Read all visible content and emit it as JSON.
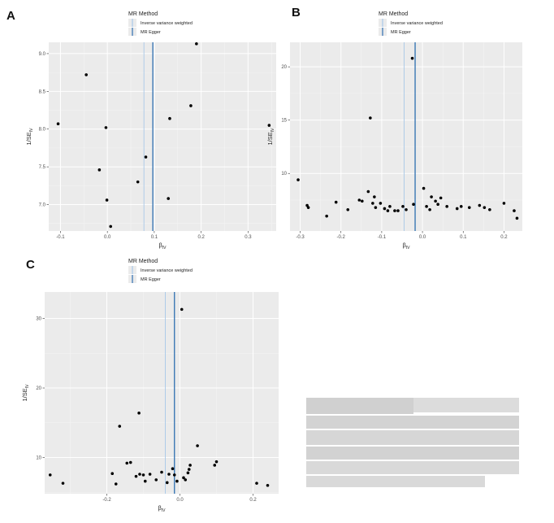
{
  "chart_data": [
    {
      "panel": "A",
      "type": "scatter",
      "legend_title": "MR Method",
      "legend_items": [
        "Inverse variance weighted",
        "MR Egger"
      ],
      "legend_colors": [
        "#a8c8e8",
        "#2e6fb0"
      ],
      "legend_position": "top",
      "xlabel": "βIV",
      "ylabel": "1/SEIV",
      "xlim": [
        -0.125,
        0.36
      ],
      "ylim": [
        6.65,
        9.15
      ],
      "xticks": [
        -0.1,
        0.0,
        0.1,
        0.2,
        0.3
      ],
      "xtick_labels": [
        "-0.1",
        "0.0",
        "0.1",
        "0.2",
        "0.3"
      ],
      "yticks": [
        7.0,
        7.5,
        8.0,
        8.5,
        9.0
      ],
      "ytick_labels": [
        "7.0",
        "7.5",
        "8.0",
        "8.5",
        "9.0"
      ],
      "vlines": [
        {
          "method": "Inverse variance weighted",
          "x": 0.078
        },
        {
          "method": "MR Egger",
          "x": 0.097
        }
      ],
      "points": [
        {
          "x": -0.105,
          "y": 8.07
        },
        {
          "x": -0.045,
          "y": 8.72
        },
        {
          "x": -0.017,
          "y": 7.46
        },
        {
          "x": -0.003,
          "y": 8.02
        },
        {
          "x": -0.001,
          "y": 7.06
        },
        {
          "x": 0.007,
          "y": 6.71
        },
        {
          "x": 0.065,
          "y": 7.3
        },
        {
          "x": 0.082,
          "y": 7.63
        },
        {
          "x": 0.13,
          "y": 7.08
        },
        {
          "x": 0.133,
          "y": 8.14
        },
        {
          "x": 0.178,
          "y": 8.31
        },
        {
          "x": 0.19,
          "y": 9.13
        },
        {
          "x": 0.345,
          "y": 8.05
        }
      ],
      "grid": true
    },
    {
      "panel": "B",
      "type": "scatter",
      "legend_title": "MR Method",
      "legend_items": [
        "Inverse variance weighted",
        "MR Egger"
      ],
      "legend_colors": [
        "#a8c8e8",
        "#2e6fb0"
      ],
      "legend_position": "top",
      "xlabel": "βIV",
      "ylabel": "1/SEIV",
      "xlim": [
        -0.325,
        0.245
      ],
      "ylim": [
        4.6,
        22.3
      ],
      "xticks": [
        -0.3,
        -0.2,
        -0.1,
        0.0,
        0.1,
        0.2
      ],
      "xtick_labels": [
        "-0.3",
        "-0.2",
        "-0.1",
        "0.0",
        "0.1",
        "0.2"
      ],
      "yticks": [
        10,
        15,
        20
      ],
      "ytick_labels": [
        "10",
        "15",
        "20"
      ],
      "vlines": [
        {
          "method": "Inverse variance weighted",
          "x": -0.045
        },
        {
          "method": "MR Egger",
          "x": -0.018
        }
      ],
      "points": [
        {
          "x": -0.305,
          "y": 9.4
        },
        {
          "x": -0.283,
          "y": 7.0
        },
        {
          "x": -0.28,
          "y": 6.8
        },
        {
          "x": -0.235,
          "y": 6.0
        },
        {
          "x": -0.212,
          "y": 7.3
        },
        {
          "x": -0.183,
          "y": 6.6
        },
        {
          "x": -0.155,
          "y": 7.5
        },
        {
          "x": -0.148,
          "y": 7.4
        },
        {
          "x": -0.133,
          "y": 8.3
        },
        {
          "x": -0.128,
          "y": 15.2
        },
        {
          "x": -0.122,
          "y": 7.2
        },
        {
          "x": -0.118,
          "y": 7.8
        },
        {
          "x": -0.115,
          "y": 6.8
        },
        {
          "x": -0.103,
          "y": 7.2
        },
        {
          "x": -0.093,
          "y": 6.7
        },
        {
          "x": -0.085,
          "y": 6.5
        },
        {
          "x": -0.08,
          "y": 6.9
        },
        {
          "x": -0.068,
          "y": 6.5
        },
        {
          "x": -0.06,
          "y": 6.5
        },
        {
          "x": -0.048,
          "y": 6.9
        },
        {
          "x": -0.04,
          "y": 6.6
        },
        {
          "x": -0.025,
          "y": 20.8
        },
        {
          "x": -0.022,
          "y": 7.1
        },
        {
          "x": 0.003,
          "y": 8.6
        },
        {
          "x": 0.01,
          "y": 6.9
        },
        {
          "x": 0.018,
          "y": 6.6
        },
        {
          "x": 0.022,
          "y": 7.8
        },
        {
          "x": 0.032,
          "y": 7.4
        },
        {
          "x": 0.038,
          "y": 7.1
        },
        {
          "x": 0.045,
          "y": 7.7
        },
        {
          "x": 0.06,
          "y": 6.9
        },
        {
          "x": 0.085,
          "y": 6.7
        },
        {
          "x": 0.095,
          "y": 6.9
        },
        {
          "x": 0.115,
          "y": 6.8
        },
        {
          "x": 0.14,
          "y": 7.0
        },
        {
          "x": 0.152,
          "y": 6.8
        },
        {
          "x": 0.165,
          "y": 6.6
        },
        {
          "x": 0.2,
          "y": 7.2
        },
        {
          "x": 0.225,
          "y": 6.5
        },
        {
          "x": 0.232,
          "y": 5.8
        }
      ],
      "grid": true
    },
    {
      "panel": "C",
      "type": "scatter",
      "legend_title": "MR Method",
      "legend_items": [
        "Inverse variance weighted",
        "MR Egger"
      ],
      "legend_colors": [
        "#a8c8e8",
        "#2e6fb0"
      ],
      "legend_position": "top",
      "xlabel": "βIV",
      "ylabel": "1/SEIV",
      "xlim": [
        -0.37,
        0.27
      ],
      "ylim": [
        4.8,
        33.8
      ],
      "xticks": [
        -0.2,
        0.0,
        0.2
      ],
      "xtick_labels": [
        "-0.2",
        "0.0",
        "0.2"
      ],
      "yticks": [
        10,
        20,
        30
      ],
      "ytick_labels": [
        "10",
        "20",
        "30"
      ],
      "vlines": [
        {
          "method": "Inverse variance weighted",
          "x": -0.04
        },
        {
          "method": "MR Egger",
          "x": -0.015
        }
      ],
      "points": [
        {
          "x": -0.355,
          "y": 7.5
        },
        {
          "x": -0.32,
          "y": 6.3
        },
        {
          "x": -0.185,
          "y": 7.7
        },
        {
          "x": -0.175,
          "y": 6.2
        },
        {
          "x": -0.165,
          "y": 14.5
        },
        {
          "x": -0.145,
          "y": 9.2
        },
        {
          "x": -0.135,
          "y": 9.3
        },
        {
          "x": -0.12,
          "y": 7.3
        },
        {
          "x": -0.112,
          "y": 16.4
        },
        {
          "x": -0.11,
          "y": 7.6
        },
        {
          "x": -0.1,
          "y": 7.5
        },
        {
          "x": -0.095,
          "y": 6.6
        },
        {
          "x": -0.082,
          "y": 7.6
        },
        {
          "x": -0.065,
          "y": 6.8
        },
        {
          "x": -0.05,
          "y": 7.9
        },
        {
          "x": -0.035,
          "y": 6.4
        },
        {
          "x": -0.03,
          "y": 7.6
        },
        {
          "x": -0.02,
          "y": 8.4
        },
        {
          "x": -0.015,
          "y": 7.5
        },
        {
          "x": -0.008,
          "y": 6.6
        },
        {
          "x": 0.005,
          "y": 31.3
        },
        {
          "x": 0.01,
          "y": 7.1
        },
        {
          "x": 0.015,
          "y": 6.8
        },
        {
          "x": 0.022,
          "y": 7.8
        },
        {
          "x": 0.025,
          "y": 8.3
        },
        {
          "x": 0.028,
          "y": 8.9
        },
        {
          "x": 0.048,
          "y": 11.7
        },
        {
          "x": 0.095,
          "y": 8.9
        },
        {
          "x": 0.1,
          "y": 9.4
        },
        {
          "x": 0.21,
          "y": 6.3
        },
        {
          "x": 0.24,
          "y": 6.0
        }
      ],
      "grid": true
    }
  ]
}
